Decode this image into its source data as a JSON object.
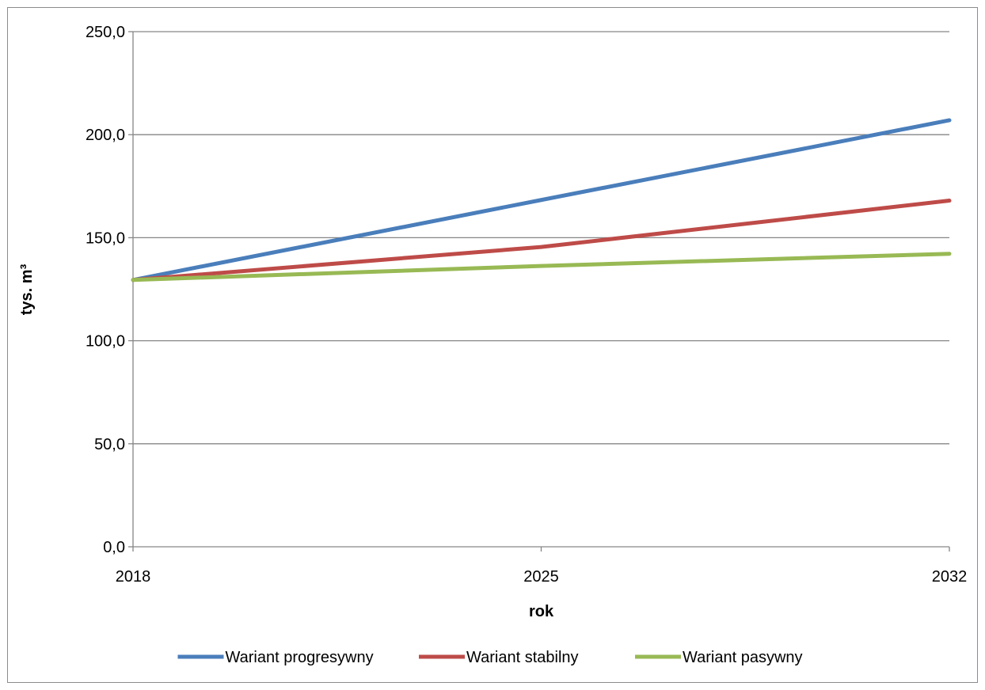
{
  "chart_data": {
    "type": "line",
    "title": "",
    "xlabel": "rok",
    "ylabel": "tys. m³",
    "x": [
      "2018",
      "2025",
      "2032"
    ],
    "ylim": [
      0,
      250
    ],
    "yticks": [
      "0,0",
      "50,0",
      "100,0",
      "150,0",
      "200,0",
      "250,0"
    ],
    "ytick_values": [
      0,
      50,
      100,
      150,
      200,
      250
    ],
    "grid": true,
    "legend_position": "bottom",
    "series": [
      {
        "name": "Wariant progresywny",
        "color": "#4a7ebb",
        "values": [
          129.5,
          168.3,
          207.0
        ]
      },
      {
        "name": "Wariant stabilny",
        "color": "#be4b48",
        "values": [
          129.5,
          145.5,
          168.0
        ]
      },
      {
        "name": "Wariant pasywny",
        "color": "#98b954",
        "values": [
          129.5,
          136.3,
          142.2
        ]
      }
    ]
  }
}
